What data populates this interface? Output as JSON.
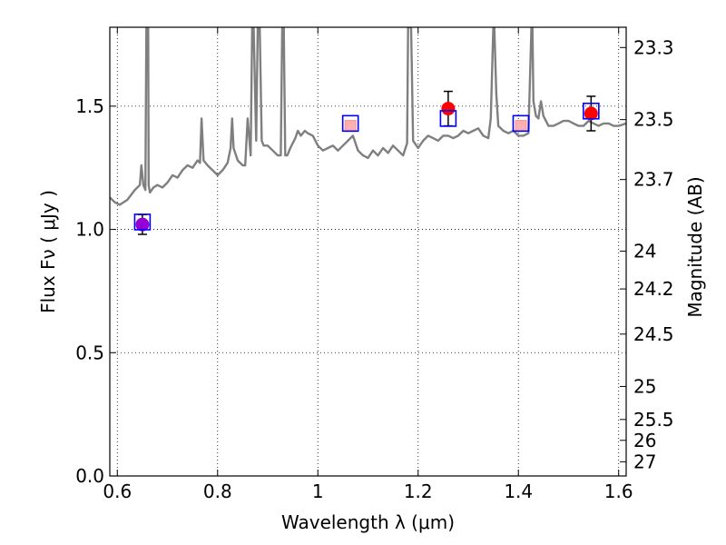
{
  "chart_data": {
    "type": "line",
    "xlabel": "Wavelength  λ (μm)",
    "ylabel": "Flux  Fν ( μJy )",
    "ylabel_right": "Magnitude (AB)",
    "xlim": [
      0.585,
      1.615
    ],
    "ylim": [
      0.0,
      1.82
    ],
    "grid": true,
    "x_ticks": [
      0.6,
      0.8,
      1.0,
      1.2,
      1.4,
      1.6
    ],
    "x_tick_labels": [
      "0.6",
      "0.8",
      "1",
      "1.2",
      "1.4",
      "1.6"
    ],
    "y_ticks": [
      0.0,
      0.5,
      1.0,
      1.5
    ],
    "y_tick_labels": [
      "0.0",
      "0.5",
      "1.0",
      "1.5"
    ],
    "right_ticks": [
      {
        "label": "23.3",
        "value": 23.3
      },
      {
        "label": "23.5",
        "value": 23.5
      },
      {
        "label": "23.7",
        "value": 23.7
      },
      {
        "label": "24",
        "value": 24.0
      },
      {
        "label": "24.2",
        "value": 24.2
      },
      {
        "label": "24.5",
        "value": 24.5
      },
      {
        "label": "25",
        "value": 25.0
      },
      {
        "label": "25.5",
        "value": 25.5
      },
      {
        "label": "26",
        "value": 26.0
      },
      {
        "label": "27",
        "value": 27.0
      }
    ],
    "series": [
      {
        "kind": "model-spectrum",
        "color": "#7f7f7f",
        "x": [
          0.585,
          0.595,
          0.605,
          0.62,
          0.635,
          0.645,
          0.648,
          0.652,
          0.656,
          0.658,
          0.6615,
          0.6625,
          0.665,
          0.672,
          0.68,
          0.69,
          0.7,
          0.71,
          0.72,
          0.73,
          0.74,
          0.75,
          0.76,
          0.765,
          0.768,
          0.772,
          0.78,
          0.79,
          0.8,
          0.81,
          0.82,
          0.826,
          0.829,
          0.832,
          0.84,
          0.85,
          0.855,
          0.86,
          0.866,
          0.869,
          0.872,
          0.877,
          0.88,
          0.884,
          0.888,
          0.892,
          0.9,
          0.91,
          0.92,
          0.926,
          0.929,
          0.932,
          0.935,
          0.939,
          0.945,
          0.955,
          0.96,
          0.966,
          0.97,
          0.974,
          0.98,
          0.99,
          1.0,
          1.01,
          1.02,
          1.03,
          1.04,
          1.05,
          1.06,
          1.07,
          1.08,
          1.09,
          1.1,
          1.11,
          1.12,
          1.13,
          1.14,
          1.15,
          1.16,
          1.17,
          1.178,
          1.18,
          1.186,
          1.19,
          1.2,
          1.21,
          1.22,
          1.23,
          1.24,
          1.25,
          1.26,
          1.27,
          1.28,
          1.29,
          1.3,
          1.31,
          1.32,
          1.33,
          1.34,
          1.345,
          1.35,
          1.352,
          1.356,
          1.36,
          1.37,
          1.38,
          1.39,
          1.4,
          1.41,
          1.42,
          1.426,
          1.428,
          1.43,
          1.435,
          1.44,
          1.445,
          1.45,
          1.46,
          1.47,
          1.48,
          1.49,
          1.5,
          1.51,
          1.52,
          1.53,
          1.54,
          1.55,
          1.56,
          1.57,
          1.58,
          1.59,
          1.6,
          1.615
        ],
        "y": [
          1.13,
          1.11,
          1.1,
          1.12,
          1.16,
          1.18,
          1.26,
          1.18,
          1.16,
          1.82,
          1.82,
          1.18,
          1.15,
          1.17,
          1.18,
          1.17,
          1.19,
          1.22,
          1.21,
          1.24,
          1.26,
          1.25,
          1.28,
          1.27,
          1.45,
          1.28,
          1.26,
          1.24,
          1.22,
          1.24,
          1.27,
          1.33,
          1.45,
          1.33,
          1.28,
          1.26,
          1.26,
          1.45,
          1.3,
          1.82,
          1.82,
          1.36,
          1.82,
          1.82,
          1.36,
          1.34,
          1.34,
          1.32,
          1.3,
          1.3,
          1.82,
          1.82,
          1.3,
          1.3,
          1.33,
          1.37,
          1.4,
          1.38,
          1.39,
          1.4,
          1.39,
          1.38,
          1.34,
          1.32,
          1.33,
          1.34,
          1.32,
          1.34,
          1.36,
          1.38,
          1.32,
          1.3,
          1.29,
          1.32,
          1.3,
          1.33,
          1.31,
          1.34,
          1.32,
          1.3,
          1.35,
          1.82,
          1.82,
          1.36,
          1.33,
          1.36,
          1.38,
          1.37,
          1.36,
          1.38,
          1.38,
          1.37,
          1.38,
          1.4,
          1.39,
          1.4,
          1.41,
          1.38,
          1.37,
          1.45,
          1.82,
          1.82,
          1.55,
          1.42,
          1.4,
          1.39,
          1.4,
          1.38,
          1.38,
          1.39,
          1.82,
          1.82,
          1.52,
          1.46,
          1.45,
          1.52,
          1.46,
          1.42,
          1.42,
          1.43,
          1.44,
          1.44,
          1.43,
          1.42,
          1.42,
          1.44,
          1.43,
          1.42,
          1.43,
          1.43,
          1.42,
          1.42,
          1.43
        ]
      },
      {
        "kind": "observed-flux",
        "color": "#ff0000",
        "points": [
          {
            "x": 0.65,
            "y": 1.02,
            "err": 0.04,
            "color": "#9400d3"
          },
          {
            "x": 1.26,
            "y": 1.49,
            "err": 0.07,
            "color": "#ff0000"
          },
          {
            "x": 1.545,
            "y": 1.47,
            "err": 0.07,
            "color": "#ff0000"
          }
        ]
      },
      {
        "kind": "model-synthetic-flux",
        "color": "#0000ff",
        "points": [
          {
            "x": 0.65,
            "y": 1.03
          },
          {
            "x": 1.065,
            "y": 1.43
          },
          {
            "x": 1.26,
            "y": 1.45
          },
          {
            "x": 1.405,
            "y": 1.43
          },
          {
            "x": 1.545,
            "y": 1.48
          }
        ]
      },
      {
        "kind": "faint-observed",
        "color": "#ffb0b0",
        "points": [
          {
            "x": 1.065,
            "y": 1.42
          },
          {
            "x": 1.405,
            "y": 1.42
          }
        ]
      }
    ]
  }
}
